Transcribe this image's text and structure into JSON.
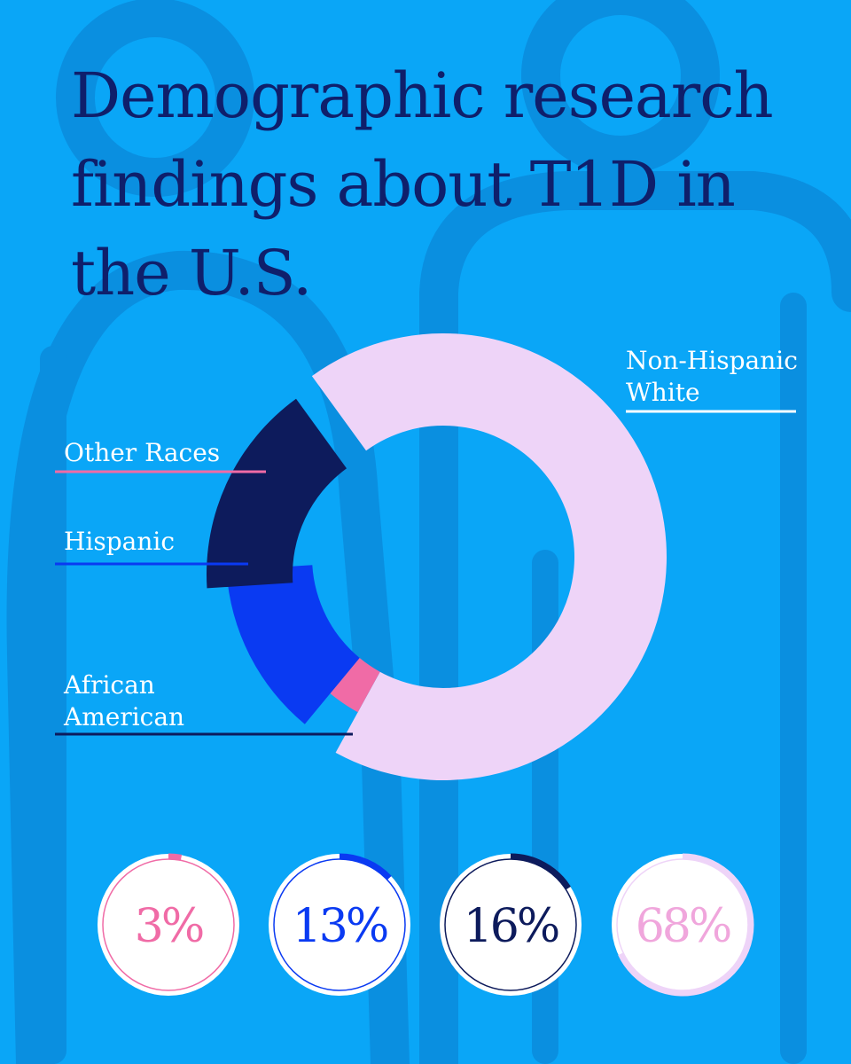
{
  "title": "Demographic research findings about T1D in the U.S.",
  "colors": {
    "background": "#0aa6f7",
    "figures": "#0a8fe0",
    "title": "#0f1f6b"
  },
  "chart_data": {
    "type": "pie",
    "title": "Demographic research findings about T1D in the U.S.",
    "slices": [
      {
        "label": "Non-Hispanic White",
        "value": 68,
        "display": "68%",
        "color": "#eed4f8",
        "text_color": "#f0a6dc"
      },
      {
        "label": "Other Races",
        "value": 3,
        "display": "3%",
        "color": "#f06ba6",
        "text_color": "#f06ba6"
      },
      {
        "label": "Hispanic",
        "value": 13,
        "display": "13%",
        "color": "#0a3af2",
        "text_color": "#0a3af2"
      },
      {
        "label": "African American",
        "value": 16,
        "display": "16%",
        "color": "#0d1b5c",
        "text_color": "#0d1b5c"
      }
    ]
  }
}
